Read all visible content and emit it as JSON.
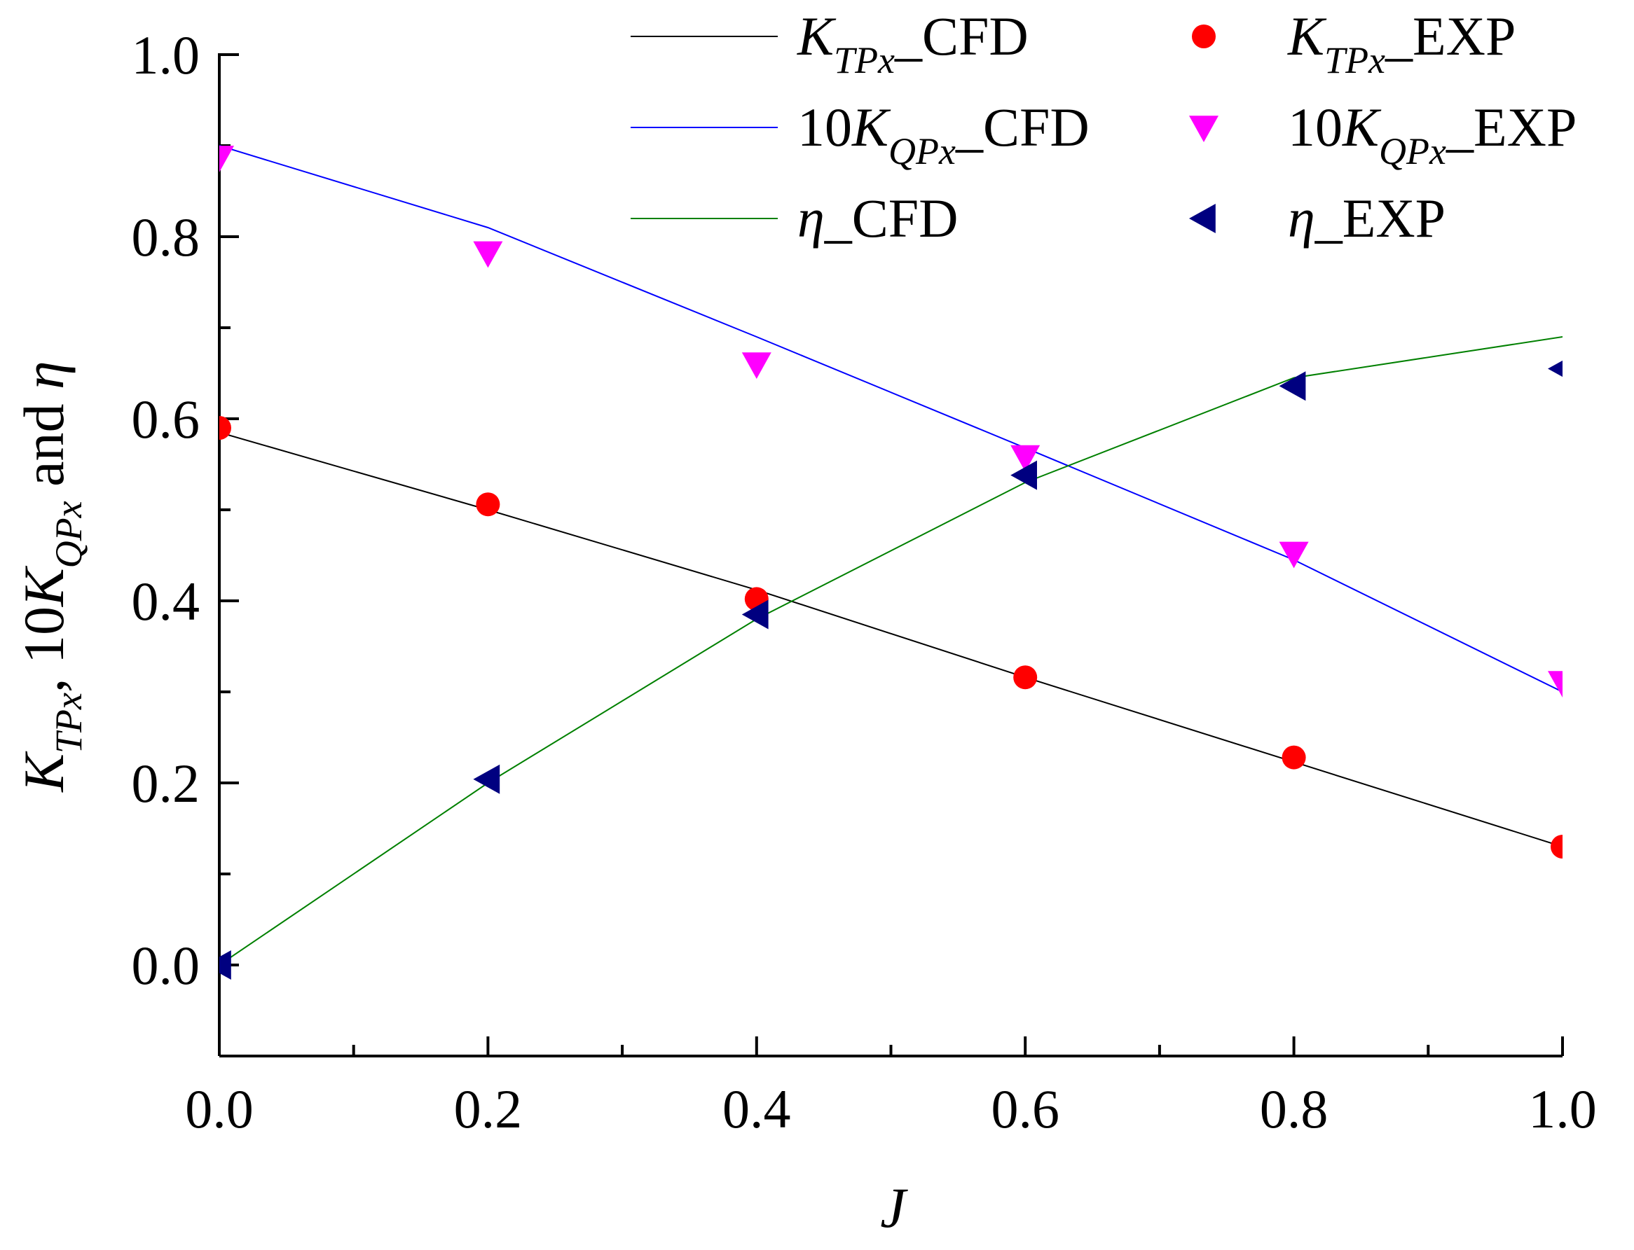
{
  "chart_data": {
    "type": "line",
    "title": "",
    "xlabel": "J",
    "ylabel": {
      "parts": [
        {
          "text": "K",
          "style": "italic"
        },
        {
          "text": "TPx",
          "style": "subscript"
        },
        {
          "text": ", 10",
          "style": "normal"
        },
        {
          "text": "K",
          "style": "italic"
        },
        {
          "text": "QPx",
          "style": "subscript"
        },
        {
          "text": " and ",
          "style": "normal"
        },
        {
          "text": "η",
          "style": "italic"
        }
      ]
    },
    "xlim": [
      0.0,
      1.0
    ],
    "ylim": [
      -0.1,
      1.0
    ],
    "x_ticks": [
      "0.0",
      "0.2",
      "0.4",
      "0.6",
      "0.8",
      "1.0"
    ],
    "y_ticks": [
      "0.0",
      "0.2",
      "0.4",
      "0.6",
      "0.8",
      "1.0"
    ],
    "legend_position": "top",
    "series": [
      {
        "name": "K_TPx_CFD",
        "label": {
          "main": "K",
          "sub": "TPx",
          "suffix": "_CFD",
          "prefix": ""
        },
        "kind": "line",
        "color": "#000000",
        "x": [
          0.0,
          0.2,
          0.4,
          0.6,
          0.8,
          1.0
        ],
        "values": [
          0.585,
          0.5,
          0.412,
          0.316,
          0.223,
          0.13
        ]
      },
      {
        "name": "K_TPx_EXP",
        "label": {
          "main": "K",
          "sub": "TPx",
          "suffix": "_EXP",
          "prefix": ""
        },
        "kind": "circle",
        "color": "#ff0000",
        "x": [
          0.0,
          0.2,
          0.4,
          0.6,
          0.8,
          1.0
        ],
        "values": [
          0.59,
          0.506,
          0.402,
          0.316,
          0.228,
          0.13
        ]
      },
      {
        "name": "10K_QPx_CFD",
        "label": {
          "main": "K",
          "sub": "QPx",
          "suffix": "_CFD",
          "prefix": "10"
        },
        "kind": "line",
        "color": "#0000ff",
        "x": [
          0.0,
          0.2,
          0.4,
          0.6,
          0.8,
          1.0
        ],
        "values": [
          0.9,
          0.81,
          0.69,
          0.568,
          0.445,
          0.3
        ]
      },
      {
        "name": "10K_QPx_EXP",
        "label": {
          "main": "K",
          "sub": "QPx",
          "suffix": "_EXP",
          "prefix": "10"
        },
        "kind": "triangle-down",
        "color": "#ff00ff",
        "x": [
          0.0,
          0.2,
          0.4,
          0.6,
          0.8,
          1.0
        ],
        "values": [
          0.887,
          0.782,
          0.66,
          0.558,
          0.452,
          0.31
        ]
      },
      {
        "name": "eta_CFD",
        "label": {
          "main": "η",
          "sub": "",
          "suffix": "_CFD",
          "prefix": ""
        },
        "kind": "line",
        "color": "#008000",
        "x": [
          0.0,
          0.2,
          0.4,
          0.6,
          0.8,
          1.0
        ],
        "values": [
          0.0,
          0.2,
          0.38,
          0.53,
          0.645,
          0.69
        ]
      },
      {
        "name": "eta_EXP",
        "label": {
          "main": "η",
          "sub": "",
          "suffix": "_EXP",
          "prefix": ""
        },
        "kind": "triangle-left",
        "color": "#000080",
        "x": [
          0.0,
          0.2,
          0.4,
          0.6,
          0.8,
          1.0
        ],
        "values": [
          0.0,
          0.204,
          0.385,
          0.538,
          0.636,
          0.655
        ]
      }
    ]
  }
}
